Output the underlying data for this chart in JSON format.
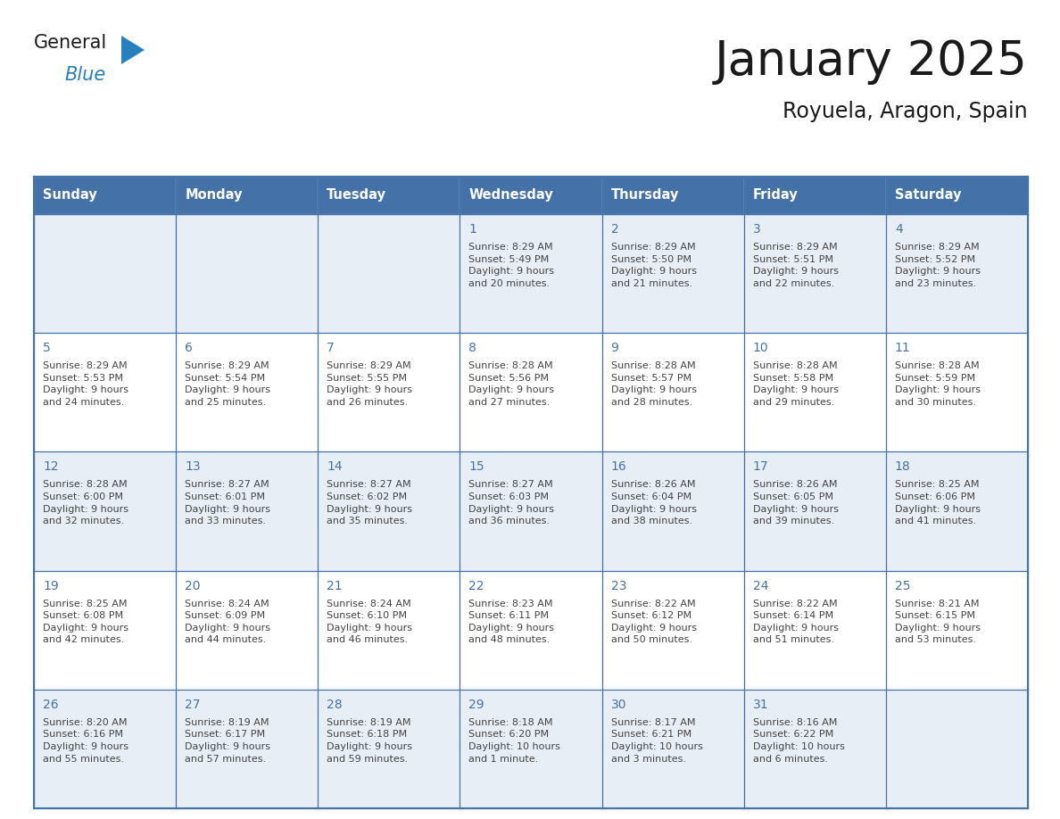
{
  "title": "January 2025",
  "subtitle": "Royuela, Aragon, Spain",
  "header_color": "#4472a8",
  "header_text_color": "#ffffff",
  "cell_bg_color": "#ffffff",
  "row_alt_color": "#e8eef5",
  "border_color": "#4472a8",
  "title_color": "#1a1a1a",
  "subtitle_color": "#1a1a1a",
  "day_number_color": "#4472a8",
  "cell_text_color": "#444444",
  "days_of_week": [
    "Sunday",
    "Monday",
    "Tuesday",
    "Wednesday",
    "Thursday",
    "Friday",
    "Saturday"
  ],
  "weeks": [
    [
      {
        "day": "",
        "text": ""
      },
      {
        "day": "",
        "text": ""
      },
      {
        "day": "",
        "text": ""
      },
      {
        "day": "1",
        "text": "Sunrise: 8:29 AM\nSunset: 5:49 PM\nDaylight: 9 hours\nand 20 minutes."
      },
      {
        "day": "2",
        "text": "Sunrise: 8:29 AM\nSunset: 5:50 PM\nDaylight: 9 hours\nand 21 minutes."
      },
      {
        "day": "3",
        "text": "Sunrise: 8:29 AM\nSunset: 5:51 PM\nDaylight: 9 hours\nand 22 minutes."
      },
      {
        "day": "4",
        "text": "Sunrise: 8:29 AM\nSunset: 5:52 PM\nDaylight: 9 hours\nand 23 minutes."
      }
    ],
    [
      {
        "day": "5",
        "text": "Sunrise: 8:29 AM\nSunset: 5:53 PM\nDaylight: 9 hours\nand 24 minutes."
      },
      {
        "day": "6",
        "text": "Sunrise: 8:29 AM\nSunset: 5:54 PM\nDaylight: 9 hours\nand 25 minutes."
      },
      {
        "day": "7",
        "text": "Sunrise: 8:29 AM\nSunset: 5:55 PM\nDaylight: 9 hours\nand 26 minutes."
      },
      {
        "day": "8",
        "text": "Sunrise: 8:28 AM\nSunset: 5:56 PM\nDaylight: 9 hours\nand 27 minutes."
      },
      {
        "day": "9",
        "text": "Sunrise: 8:28 AM\nSunset: 5:57 PM\nDaylight: 9 hours\nand 28 minutes."
      },
      {
        "day": "10",
        "text": "Sunrise: 8:28 AM\nSunset: 5:58 PM\nDaylight: 9 hours\nand 29 minutes."
      },
      {
        "day": "11",
        "text": "Sunrise: 8:28 AM\nSunset: 5:59 PM\nDaylight: 9 hours\nand 30 minutes."
      }
    ],
    [
      {
        "day": "12",
        "text": "Sunrise: 8:28 AM\nSunset: 6:00 PM\nDaylight: 9 hours\nand 32 minutes."
      },
      {
        "day": "13",
        "text": "Sunrise: 8:27 AM\nSunset: 6:01 PM\nDaylight: 9 hours\nand 33 minutes."
      },
      {
        "day": "14",
        "text": "Sunrise: 8:27 AM\nSunset: 6:02 PM\nDaylight: 9 hours\nand 35 minutes."
      },
      {
        "day": "15",
        "text": "Sunrise: 8:27 AM\nSunset: 6:03 PM\nDaylight: 9 hours\nand 36 minutes."
      },
      {
        "day": "16",
        "text": "Sunrise: 8:26 AM\nSunset: 6:04 PM\nDaylight: 9 hours\nand 38 minutes."
      },
      {
        "day": "17",
        "text": "Sunrise: 8:26 AM\nSunset: 6:05 PM\nDaylight: 9 hours\nand 39 minutes."
      },
      {
        "day": "18",
        "text": "Sunrise: 8:25 AM\nSunset: 6:06 PM\nDaylight: 9 hours\nand 41 minutes."
      }
    ],
    [
      {
        "day": "19",
        "text": "Sunrise: 8:25 AM\nSunset: 6:08 PM\nDaylight: 9 hours\nand 42 minutes."
      },
      {
        "day": "20",
        "text": "Sunrise: 8:24 AM\nSunset: 6:09 PM\nDaylight: 9 hours\nand 44 minutes."
      },
      {
        "day": "21",
        "text": "Sunrise: 8:24 AM\nSunset: 6:10 PM\nDaylight: 9 hours\nand 46 minutes."
      },
      {
        "day": "22",
        "text": "Sunrise: 8:23 AM\nSunset: 6:11 PM\nDaylight: 9 hours\nand 48 minutes."
      },
      {
        "day": "23",
        "text": "Sunrise: 8:22 AM\nSunset: 6:12 PM\nDaylight: 9 hours\nand 50 minutes."
      },
      {
        "day": "24",
        "text": "Sunrise: 8:22 AM\nSunset: 6:14 PM\nDaylight: 9 hours\nand 51 minutes."
      },
      {
        "day": "25",
        "text": "Sunrise: 8:21 AM\nSunset: 6:15 PM\nDaylight: 9 hours\nand 53 minutes."
      }
    ],
    [
      {
        "day": "26",
        "text": "Sunrise: 8:20 AM\nSunset: 6:16 PM\nDaylight: 9 hours\nand 55 minutes."
      },
      {
        "day": "27",
        "text": "Sunrise: 8:19 AM\nSunset: 6:17 PM\nDaylight: 9 hours\nand 57 minutes."
      },
      {
        "day": "28",
        "text": "Sunrise: 8:19 AM\nSunset: 6:18 PM\nDaylight: 9 hours\nand 59 minutes."
      },
      {
        "day": "29",
        "text": "Sunrise: 8:18 AM\nSunset: 6:20 PM\nDaylight: 10 hours\nand 1 minute."
      },
      {
        "day": "30",
        "text": "Sunrise: 8:17 AM\nSunset: 6:21 PM\nDaylight: 10 hours\nand 3 minutes."
      },
      {
        "day": "31",
        "text": "Sunrise: 8:16 AM\nSunset: 6:22 PM\nDaylight: 10 hours\nand 6 minutes."
      },
      {
        "day": "",
        "text": ""
      }
    ]
  ],
  "logo_general_color": "#1a1a1a",
  "logo_blue_color": "#2980c0",
  "logo_triangle_color": "#2980c0"
}
